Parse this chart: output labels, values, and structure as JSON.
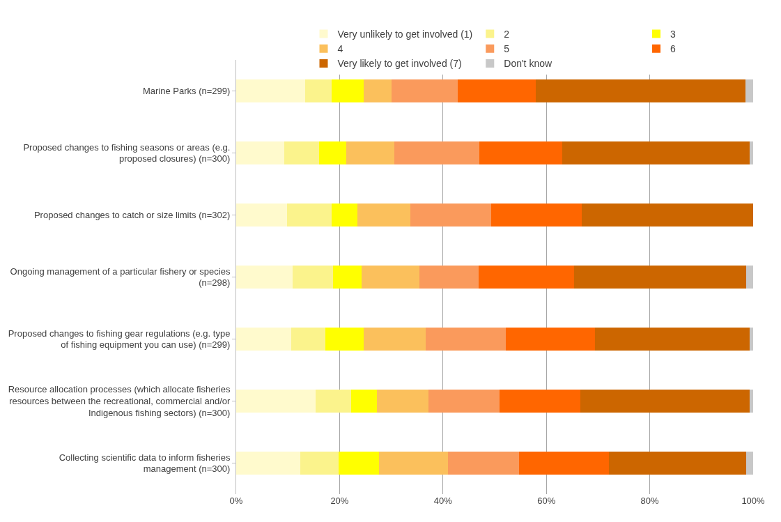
{
  "chart_data": {
    "type": "bar",
    "orientation": "horizontal",
    "stacked": true,
    "categories": [
      "Marine Parks (n=299)",
      "Proposed changes to fishing seasons or areas (e.g. proposed closures) (n=300)",
      "Proposed changes to catch or size limits (n=302)",
      "Ongoing management of a particular fishery or species (n=298)",
      "Proposed changes to fishing gear regulations (e.g. type of fishing equipment you can use) (n=299)",
      "Resource allocation processes (which allocate fisheries resources between the recreational, commercial and/or Indigenous fishing sectors) (n=300)",
      "Collecting scientific data to inform fisheries management (n=300)"
    ],
    "series": [
      {
        "name": "Very unlikely to get involved (1)",
        "color": "#fffacd",
        "values": [
          13.4,
          9.3,
          9.9,
          10.9,
          10.7,
          15.3,
          12.4
        ]
      },
      {
        "name": "2",
        "color": "#fbf38c",
        "values": [
          5.1,
          6.8,
          8.6,
          7.8,
          6.5,
          6.9,
          7.4
        ]
      },
      {
        "name": "3",
        "color": "#ffff00",
        "values": [
          6.1,
          5.2,
          4.9,
          5.6,
          7.4,
          5.0,
          7.8
        ]
      },
      {
        "name": "4",
        "color": "#fbc05c",
        "values": [
          5.5,
          9.3,
          10.3,
          11.2,
          12.1,
          10.0,
          13.4
        ]
      },
      {
        "name": "5",
        "color": "#fa9a5c",
        "values": [
          12.7,
          16.4,
          15.6,
          11.4,
          15.4,
          13.8,
          13.7
        ]
      },
      {
        "name": "6",
        "color": "#ff6600",
        "values": [
          15.1,
          16.1,
          17.6,
          18.5,
          17.3,
          15.6,
          17.4
        ]
      },
      {
        "name": "Very likely to get involved (7)",
        "color": "#cc6600",
        "values": [
          40.6,
          36.2,
          33.1,
          33.2,
          29.9,
          32.7,
          26.5
        ]
      },
      {
        "name": "Don't know",
        "color": "#c8c8c8",
        "values": [
          1.5,
          0.7,
          0,
          1.4,
          0.7,
          0.7,
          1.4
        ]
      }
    ],
    "xlim": [
      0,
      100
    ],
    "xticks": [
      {
        "value": 0,
        "label": "0%"
      },
      {
        "value": 20,
        "label": "20%"
      },
      {
        "value": 40,
        "label": "40%"
      },
      {
        "value": 60,
        "label": "60%"
      },
      {
        "value": 80,
        "label": "80%"
      },
      {
        "value": 100,
        "label": "100%"
      }
    ],
    "grid": "x",
    "legend": "top"
  }
}
